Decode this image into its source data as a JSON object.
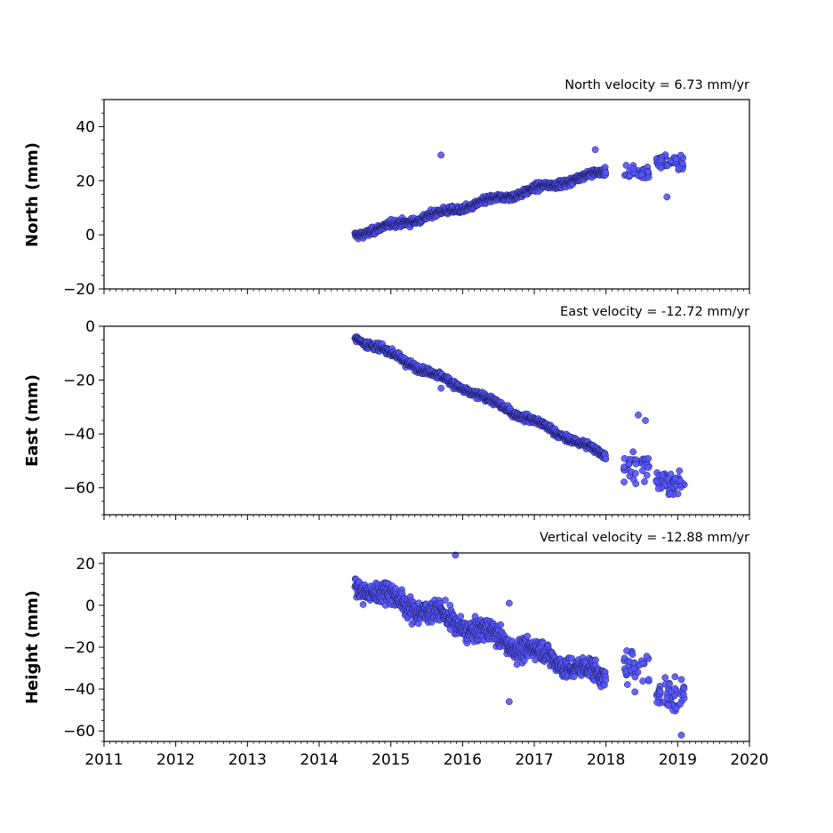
{
  "chart_data": [
    {
      "type": "scatter",
      "title": "North velocity = 6.73 mm/yr",
      "ylabel": "North (mm)",
      "xlim": [
        2011,
        2020
      ],
      "ylim": [
        -20,
        50
      ],
      "yticks": [
        -20,
        0,
        20,
        40
      ],
      "marker_color": "#5555ff",
      "trend": {
        "start_year": 2014.5,
        "end_year": 2018.0,
        "start_value": 0,
        "end_value": 23.5,
        "noise": 1.6
      },
      "segments": [
        {
          "from": 2018.25,
          "to": 2018.6,
          "center": 23,
          "spread": 4,
          "count": 30
        },
        {
          "from": 2018.7,
          "to": 2019.1,
          "center": 27,
          "spread": 4,
          "count": 45
        }
      ],
      "outliers": [
        [
          2015.7,
          29.5
        ],
        [
          2017.85,
          31.5
        ],
        [
          2018.85,
          14
        ]
      ]
    },
    {
      "type": "scatter",
      "title": "East velocity = -12.72 mm/yr",
      "ylabel": "East (mm)",
      "xlim": [
        2011,
        2020
      ],
      "ylim": [
        -70,
        0
      ],
      "yticks": [
        -60,
        -40,
        -20,
        0
      ],
      "marker_color": "#5555ff",
      "trend": {
        "start_year": 2014.5,
        "end_year": 2018.0,
        "start_value": -4,
        "end_value": -48,
        "noise": 1.6
      },
      "segments": [
        {
          "from": 2018.25,
          "to": 2018.6,
          "center": -52,
          "spread": 8,
          "count": 35
        },
        {
          "from": 2018.7,
          "to": 2019.1,
          "center": -58,
          "spread": 6,
          "count": 50
        }
      ],
      "outliers": [
        [
          2018.45,
          -33
        ],
        [
          2018.55,
          -35
        ],
        [
          2015.7,
          -23
        ]
      ]
    },
    {
      "type": "scatter",
      "title": "Vertical velocity = -12.88 mm/yr",
      "ylabel": "Height (mm)",
      "xlim": [
        2011,
        2020
      ],
      "ylim": [
        -65,
        25
      ],
      "yticks": [
        -60,
        -40,
        -20,
        0,
        20
      ],
      "xticks": [
        2011,
        2012,
        2013,
        2014,
        2015,
        2016,
        2017,
        2018,
        2019,
        2020
      ],
      "marker_color": "#5555ff",
      "trend": {
        "start_year": 2014.5,
        "end_year": 2018.0,
        "start_value": 10,
        "end_value": -35,
        "noise": 6
      },
      "segments": [
        {
          "from": 2018.25,
          "to": 2018.6,
          "center": -30,
          "spread": 12,
          "count": 35
        },
        {
          "from": 2018.7,
          "to": 2019.1,
          "center": -42,
          "spread": 14,
          "count": 50
        }
      ],
      "outliers": [
        [
          2015.9,
          24
        ],
        [
          2016.65,
          1
        ],
        [
          2016.65,
          -46
        ],
        [
          2019.05,
          -62
        ]
      ]
    }
  ]
}
